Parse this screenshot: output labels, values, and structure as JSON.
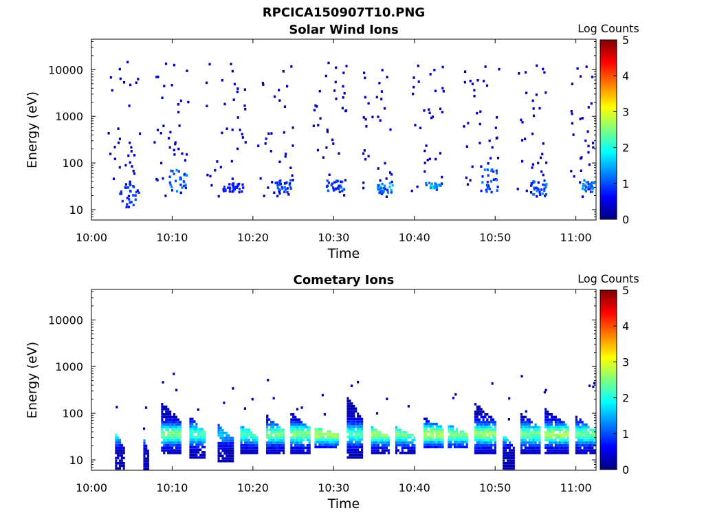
{
  "figure_title": "RPCICA150907T10.PNG",
  "chart_data": [
    {
      "type": "heatmap",
      "title": "Solar Wind Ions",
      "xlabel": "Time",
      "ylabel": "Energy (eV)",
      "x_ticks": [
        "10:00",
        "10:10",
        "10:20",
        "10:30",
        "10:40",
        "10:50",
        "11:00"
      ],
      "x_range_minutes": [
        0,
        62.5
      ],
      "y_scale": "log",
      "y_ticks": [
        "10",
        "100",
        "1000",
        "10000"
      ],
      "y_range": [
        6,
        45000
      ],
      "colorbar": {
        "label": "Log Counts",
        "range": [
          0,
          5
        ],
        "ticks": [
          "0",
          "1",
          "2",
          "3",
          "4",
          "5"
        ],
        "colormap": "jet"
      },
      "sweeps": [
        {
          "start": 1.5,
          "end": 6.0,
          "dense_low": 12,
          "dense_high": 40,
          "level": 0.8
        },
        {
          "start": 7.5,
          "end": 12.0,
          "dense_low": 25,
          "dense_high": 80,
          "level": 1.0
        },
        {
          "start": 14.0,
          "end": 19.0,
          "dense_low": 25,
          "dense_high": 40,
          "level": 0.7
        },
        {
          "start": 20.5,
          "end": 25.0,
          "dense_low": 25,
          "dense_high": 45,
          "level": 0.9
        },
        {
          "start": 27.0,
          "end": 31.5,
          "dense_low": 25,
          "dense_high": 45,
          "level": 0.9
        },
        {
          "start": 33.5,
          "end": 37.5,
          "dense_low": 22,
          "dense_high": 40,
          "level": 1.2
        },
        {
          "start": 39.5,
          "end": 43.5,
          "dense_low": 30,
          "dense_high": 40,
          "level": 1.4
        },
        {
          "start": 46.0,
          "end": 50.5,
          "dense_low": 25,
          "dense_high": 80,
          "level": 1.0
        },
        {
          "start": 52.5,
          "end": 56.5,
          "dense_low": 22,
          "dense_high": 45,
          "level": 1.0
        },
        {
          "start": 59.0,
          "end": 62.5,
          "dense_low": 25,
          "dense_high": 45,
          "level": 1.1
        }
      ]
    },
    {
      "type": "heatmap",
      "title": "Cometary Ions",
      "xlabel": "Time",
      "ylabel": "Energy (eV)",
      "x_ticks": [
        "10:00",
        "10:10",
        "10:20",
        "10:30",
        "10:40",
        "10:50",
        "11:00"
      ],
      "x_range_minutes": [
        0,
        62.5
      ],
      "y_scale": "log",
      "y_ticks": [
        "10",
        "100",
        "1000",
        "10000"
      ],
      "y_range": [
        6,
        45000
      ],
      "colorbar": {
        "label": "Log Counts",
        "range": [
          0,
          5
        ],
        "ticks": [
          "0",
          "1",
          "2",
          "3",
          "4",
          "5"
        ],
        "colormap": "jet"
      },
      "sweeps": [
        {
          "start": 2.8,
          "end": 4.0,
          "low": 7,
          "high": 40,
          "peak": 1.8
        },
        {
          "start": 6.3,
          "end": 7.0,
          "low": 6,
          "high": 30,
          "peak": 1.5
        },
        {
          "start": 8.5,
          "end": 11.0,
          "low": 15,
          "high": 180,
          "peak": 2.3
        },
        {
          "start": 12.0,
          "end": 14.0,
          "low": 12,
          "high": 90,
          "peak": 2.0
        },
        {
          "start": 15.5,
          "end": 17.5,
          "low": 10,
          "high": 60,
          "peak": 1.3
        },
        {
          "start": 18.3,
          "end": 20.5,
          "low": 15,
          "high": 60,
          "peak": 2.0
        },
        {
          "start": 21.5,
          "end": 23.8,
          "low": 15,
          "high": 90,
          "peak": 2.2
        },
        {
          "start": 24.5,
          "end": 27.0,
          "low": 15,
          "high": 110,
          "peak": 2.3
        },
        {
          "start": 27.5,
          "end": 30.5,
          "low": 20,
          "high": 55,
          "peak": 2.5
        },
        {
          "start": 31.5,
          "end": 33.5,
          "low": 12,
          "high": 250,
          "peak": 2.0
        },
        {
          "start": 34.5,
          "end": 36.8,
          "low": 15,
          "high": 55,
          "peak": 2.4
        },
        {
          "start": 37.5,
          "end": 40.0,
          "low": 15,
          "high": 55,
          "peak": 2.2
        },
        {
          "start": 41.0,
          "end": 43.5,
          "low": 20,
          "high": 90,
          "peak": 2.5
        },
        {
          "start": 44.0,
          "end": 46.5,
          "low": 20,
          "high": 60,
          "peak": 2.3
        },
        {
          "start": 47.3,
          "end": 50.0,
          "low": 15,
          "high": 180,
          "peak": 2.4
        },
        {
          "start": 50.8,
          "end": 52.3,
          "low": 7,
          "high": 40,
          "peak": 1.8
        },
        {
          "start": 53.0,
          "end": 55.5,
          "low": 15,
          "high": 110,
          "peak": 2.2
        },
        {
          "start": 56.0,
          "end": 59.0,
          "low": 15,
          "high": 130,
          "peak": 2.5
        },
        {
          "start": 59.8,
          "end": 62.3,
          "low": 15,
          "high": 90,
          "peak": 2.2
        }
      ]
    }
  ]
}
